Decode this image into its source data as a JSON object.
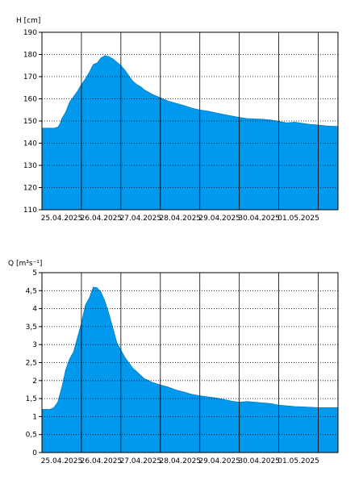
{
  "chart_data": [
    {
      "type": "area",
      "ylabel": "H [cm]",
      "ylim": [
        110,
        190
      ],
      "yticks": [
        110,
        120,
        130,
        140,
        150,
        160,
        170,
        180,
        190
      ],
      "ytick_labels": [
        "110",
        "120",
        "130",
        "140",
        "150",
        "160",
        "170",
        "180",
        "190"
      ],
      "xlim": [
        0,
        7.5
      ],
      "xticks": [
        1,
        2,
        3,
        4,
        5,
        6,
        7
      ],
      "xtick_labels": [
        "25.04.2025",
        "26.04.2025",
        "27.04.2025",
        "28.04.2025",
        "29.04.2025",
        "30.04.2025",
        "01.05.2025"
      ],
      "grid": "dotted-horizontal, solid-vertical",
      "fill_color": "#0099ee",
      "series": [
        {
          "x": [
            0.0,
            0.1,
            0.2,
            0.3,
            0.4,
            0.45,
            0.5,
            0.6,
            0.7,
            0.8,
            0.9,
            1.0,
            1.1,
            1.2,
            1.3,
            1.4,
            1.5,
            1.6,
            1.7,
            1.8,
            1.9,
            2.0,
            2.1,
            2.2,
            2.3,
            2.4,
            2.5,
            2.6,
            2.8,
            3.0,
            3.2,
            3.4,
            3.6,
            3.8,
            4.0,
            4.2,
            4.4,
            4.6,
            4.8,
            5.0,
            5.2,
            5.4,
            5.6,
            5.8,
            6.0,
            6.2,
            6.4,
            6.6,
            6.8,
            7.0,
            7.2,
            7.4,
            7.5
          ],
          "y": [
            146.8,
            146.8,
            146.8,
            146.8,
            147.2,
            148.5,
            151,
            154,
            158.5,
            161,
            163.5,
            166.5,
            169,
            172,
            175.5,
            176.2,
            178.5,
            179.5,
            179,
            178,
            176.5,
            175,
            173,
            170.5,
            168,
            166.5,
            165.5,
            164,
            162,
            160.5,
            159,
            158,
            157,
            155.8,
            155,
            154.5,
            153.7,
            153,
            152.3,
            151.6,
            151.1,
            151,
            150.8,
            150.5,
            149.8,
            149.2,
            149.5,
            149,
            148.5,
            148.2,
            147.8,
            147.6,
            147.6
          ]
        }
      ]
    },
    {
      "type": "area",
      "ylabel": "Q [m³s⁻¹]",
      "ylim": [
        0,
        5
      ],
      "yticks": [
        0,
        0.5,
        1,
        1.5,
        2,
        2.5,
        3,
        3.5,
        4,
        4.5,
        5
      ],
      "ytick_labels": [
        "0",
        "0,5",
        "1",
        "1,5",
        "2",
        "2,5",
        "3",
        "3,5",
        "4",
        "4,5",
        "5"
      ],
      "xlim": [
        0,
        7.5
      ],
      "xticks": [
        1,
        2,
        3,
        4,
        5,
        6,
        7
      ],
      "xtick_labels": [
        "25.04.2025",
        "26.04.2025",
        "27.04.2025",
        "28.04.2025",
        "29.04.2025",
        "30.04.2025",
        "01.05.2025"
      ],
      "grid": "dotted-horizontal, solid-vertical",
      "fill_color": "#0099ee",
      "series": [
        {
          "x": [
            0.0,
            0.2,
            0.3,
            0.4,
            0.5,
            0.6,
            0.7,
            0.8,
            0.9,
            1.0,
            1.1,
            1.2,
            1.3,
            1.4,
            1.5,
            1.6,
            1.7,
            1.8,
            1.9,
            2.0,
            2.1,
            2.2,
            2.3,
            2.4,
            2.5,
            2.6,
            2.8,
            3.0,
            3.2,
            3.4,
            3.6,
            3.8,
            4.0,
            4.2,
            4.4,
            4.6,
            4.8,
            5.0,
            5.2,
            5.4,
            5.6,
            5.8,
            6.0,
            6.2,
            6.4,
            6.6,
            6.8,
            7.0,
            7.2,
            7.4,
            7.5
          ],
          "y": [
            1.2,
            1.2,
            1.25,
            1.4,
            1.8,
            2.3,
            2.6,
            2.8,
            3.2,
            3.6,
            4.1,
            4.3,
            4.6,
            4.58,
            4.45,
            4.2,
            3.85,
            3.45,
            3.05,
            2.85,
            2.65,
            2.5,
            2.35,
            2.25,
            2.15,
            2.05,
            1.95,
            1.88,
            1.82,
            1.74,
            1.68,
            1.62,
            1.58,
            1.55,
            1.52,
            1.48,
            1.43,
            1.4,
            1.42,
            1.4,
            1.38,
            1.36,
            1.32,
            1.3,
            1.28,
            1.27,
            1.26,
            1.25,
            1.25,
            1.25,
            1.25
          ]
        }
      ]
    }
  ]
}
